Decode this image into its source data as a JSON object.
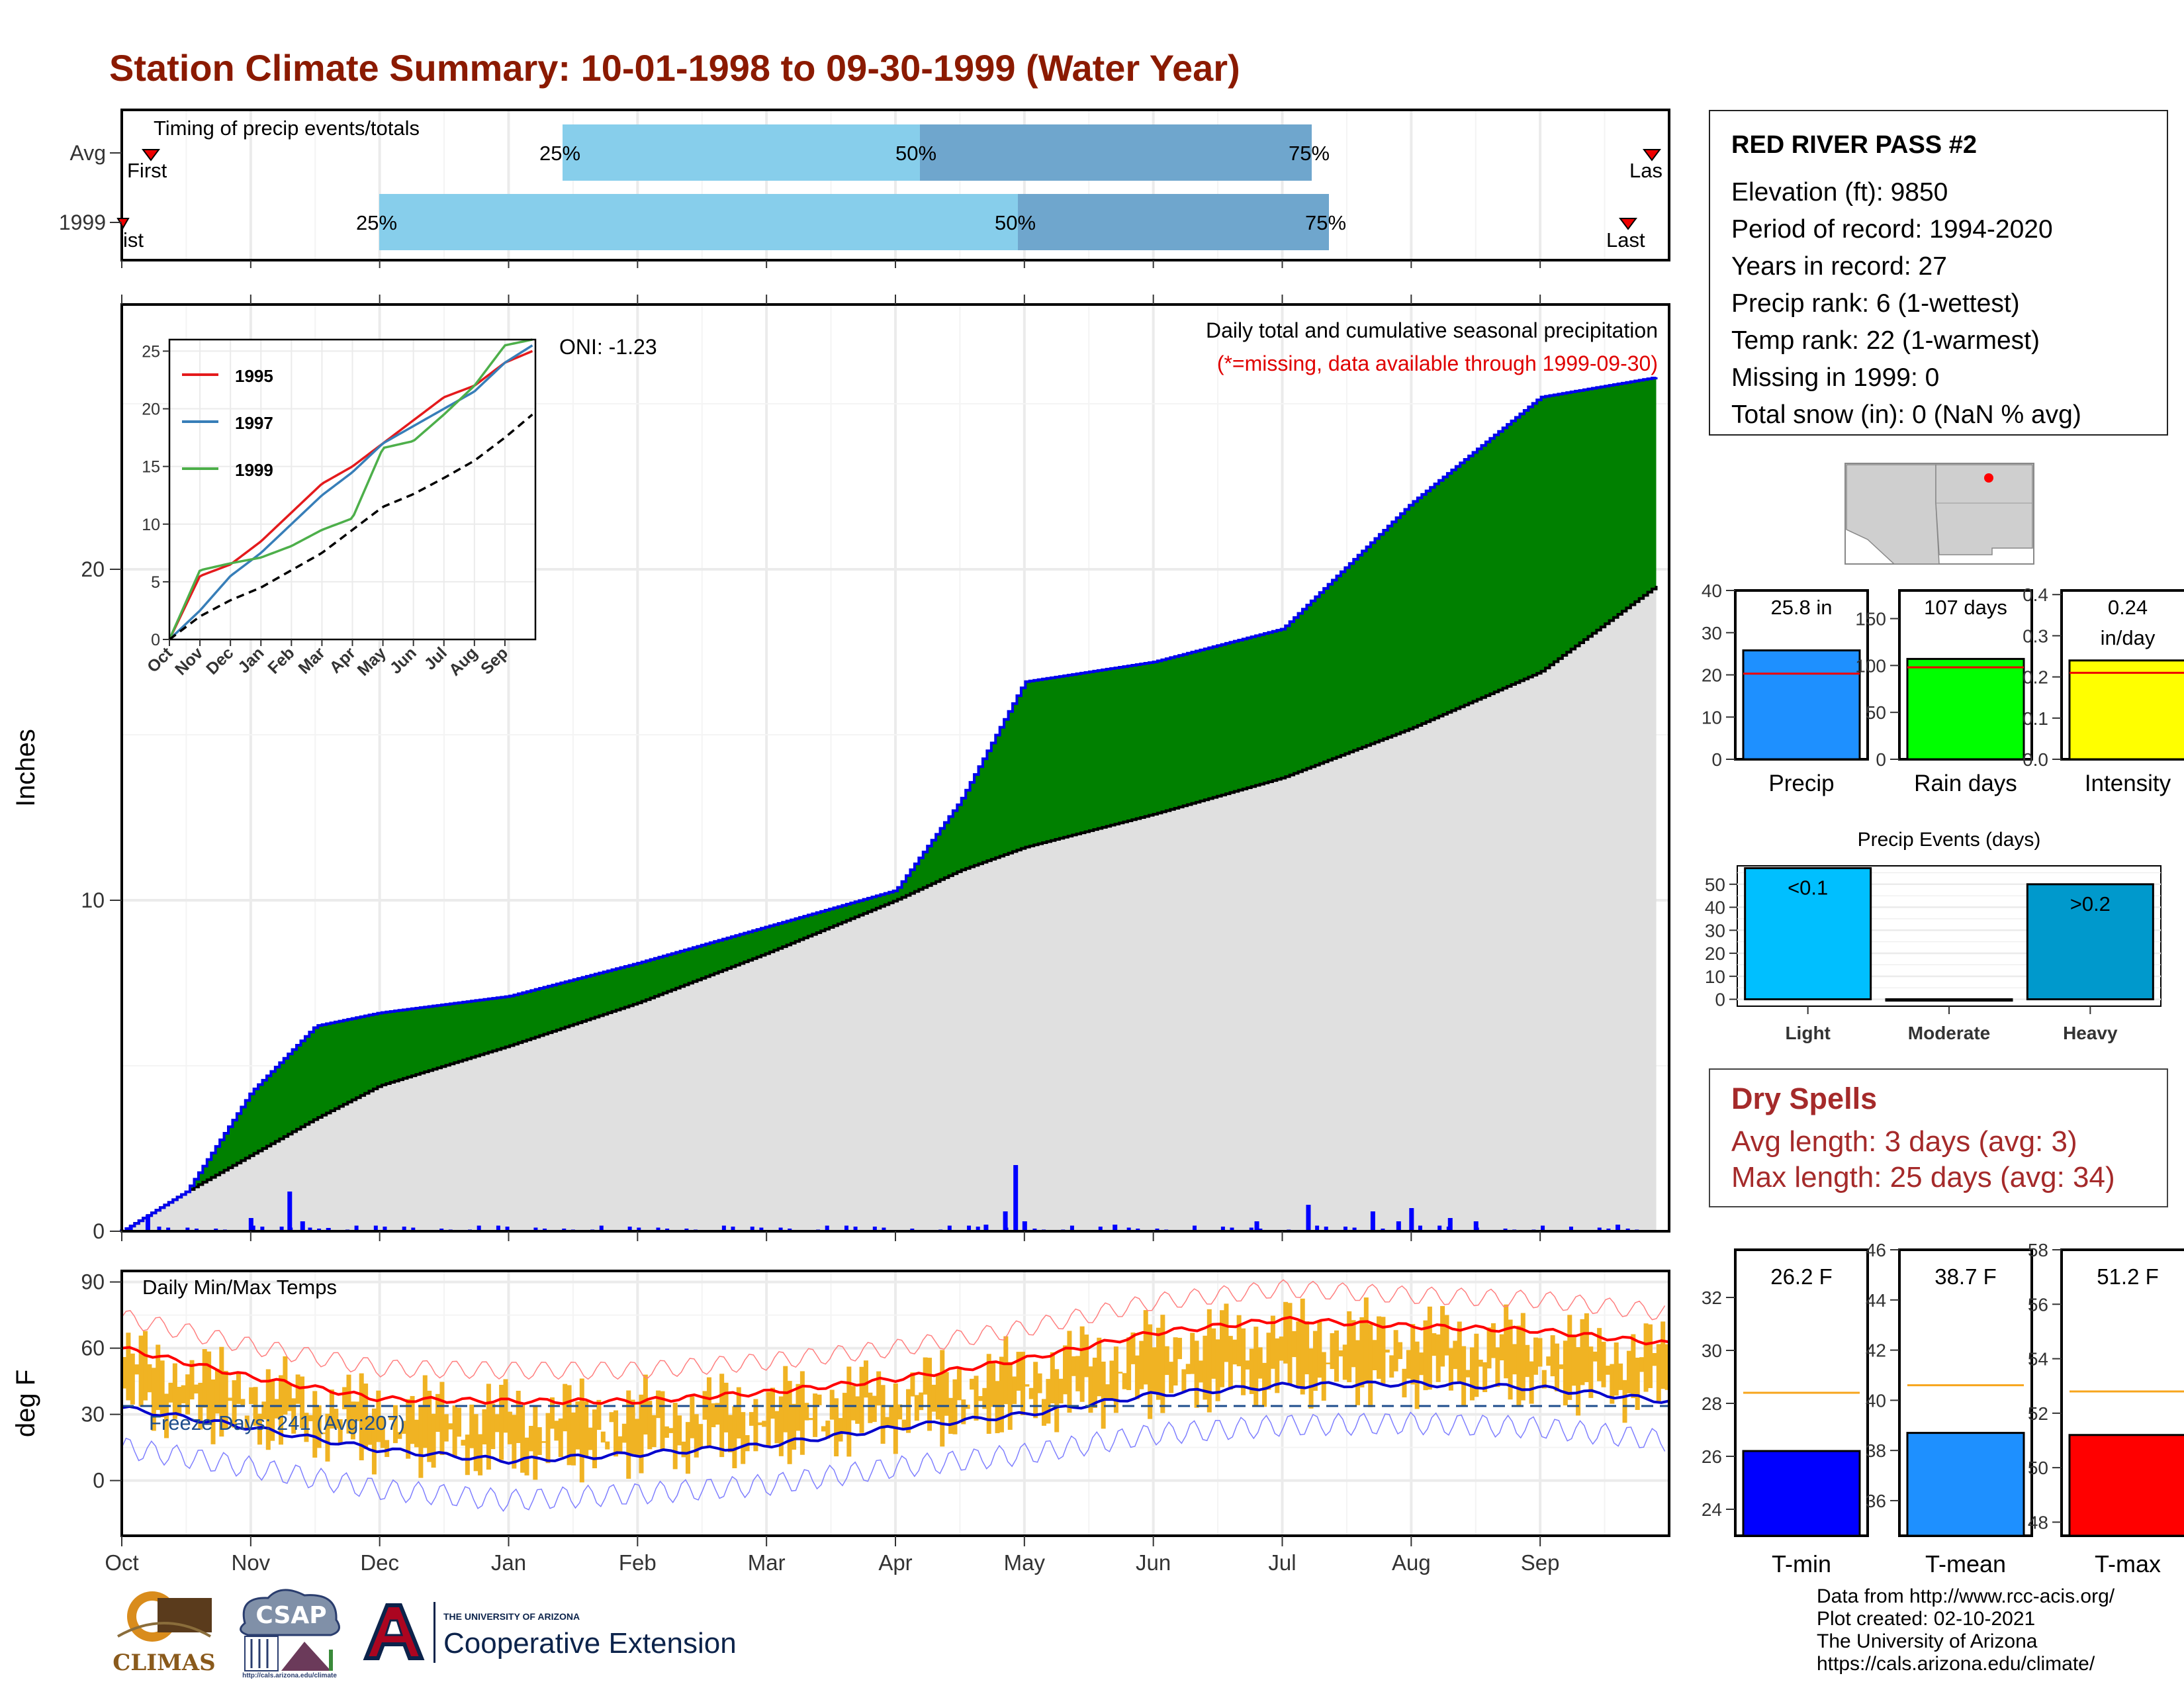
{
  "title": "Station Climate Summary: 10-01-1998 to 09-30-1999 (Water Year)",
  "timing": {
    "label": "Timing of precip events/totals",
    "rows": [
      {
        "name": "Avg",
        "first": "First",
        "last": "Las",
        "p25": "25%",
        "p50": "50%",
        "p75": "75%"
      },
      {
        "name": "1999",
        "first": "ist",
        "last": "Last",
        "p25": "25%",
        "p50": "50%",
        "p75": "75%"
      }
    ]
  },
  "main_chart": {
    "ylabel": "Inches",
    "yticks": [
      "0",
      "10",
      "20"
    ],
    "oni": "ONI: -1.23",
    "note1": "Daily total and cumulative seasonal precipitation",
    "note2": "(*=missing, data available through 1999-09-30)"
  },
  "inset": {
    "yticks": [
      "0",
      "5",
      "10",
      "15",
      "20",
      "25"
    ],
    "xticks": [
      "Oct",
      "Nov",
      "Dec",
      "Jan",
      "Feb",
      "Mar",
      "Apr",
      "May",
      "Jun",
      "Jul",
      "Aug",
      "Sep"
    ],
    "legend": [
      "1995",
      "1997",
      "1999"
    ]
  },
  "temp_chart": {
    "ylabel": "deg F",
    "yticks": [
      "0",
      "30",
      "60",
      "90"
    ],
    "label": "Daily Min/Max Temps",
    "freeze": "Freeze Days: 241 (Avg:207)"
  },
  "months": [
    "Oct",
    "Nov",
    "Dec",
    "Jan",
    "Feb",
    "Mar",
    "Apr",
    "May",
    "Jun",
    "Jul",
    "Aug",
    "Sep"
  ],
  "station": {
    "name": "RED RIVER PASS #2",
    "lines": [
      "Elevation (ft): 9850",
      "Period of record: 1994-2020",
      "Years in record: 27",
      "Precip rank: 6 (1-wettest)",
      "Temp rank: 22 (1-warmest)",
      "Missing in 1999: 0",
      "Total snow (in): 0 (NaN % avg)"
    ]
  },
  "mini_precip": {
    "label": "Precip",
    "value_text": "25.8 in",
    "yticks": [
      "0",
      "10",
      "20",
      "30",
      "40"
    ]
  },
  "mini_raindays": {
    "label": "Rain days",
    "value_text": "107 days",
    "yticks": [
      "0",
      "50",
      "100",
      "150"
    ]
  },
  "mini_intensity": {
    "label": "Intensity",
    "value_text": "0.24",
    "value_unit": "in/day",
    "yticks": [
      "0.0",
      "0.1",
      "0.2",
      "0.3",
      "0.4"
    ]
  },
  "events": {
    "title": "Precip Events (days)",
    "yticks": [
      "0",
      "10",
      "20",
      "30",
      "40",
      "50"
    ],
    "categories": [
      "Light",
      "Moderate",
      "Heavy"
    ],
    "labels": [
      "<0.1",
      "",
      ">0.2"
    ]
  },
  "dry_spells": {
    "title": "Dry Spells",
    "avg": "Avg length: 3 days (avg: 3)",
    "max": "Max length: 25 days (avg: 34)"
  },
  "tmin": {
    "label": "T-min",
    "value_text": "26.2 F",
    "yticks": [
      "24",
      "26",
      "28",
      "30",
      "32"
    ]
  },
  "tmean": {
    "label": "T-mean",
    "value_text": "38.7 F",
    "yticks": [
      "36",
      "38",
      "40",
      "42",
      "44",
      "46"
    ]
  },
  "tmax": {
    "label": "T-max",
    "value_text": "51.2 F",
    "yticks": [
      "48",
      "50",
      "52",
      "54",
      "56",
      "58"
    ]
  },
  "credits": [
    "Data from http://www.rcc-acis.org/",
    "Plot created: 02-10-2021",
    "The University of Arizona",
    "https://cals.arizona.edu/climate/"
  ],
  "logos": {
    "climas": "CLIMAS",
    "csap": "CSAP",
    "csap_url": "http://cals.arizona.edu/climate",
    "ua_small": "THE UNIVERSITY OF ARIZONA",
    "ua_big": "Cooperative Extension"
  },
  "colors": {
    "title": "#8b1a00",
    "green": "#008000",
    "blue_line": "#0000ee",
    "gray_area": "#e0e0e0",
    "light_blue": "#87ceeb",
    "steel_blue": "#6fa6cd",
    "orange": "#f0b323",
    "tmax_line": "#ff0000",
    "tmin_line": "#0000cc",
    "red": "#ff0000"
  },
  "chart_data": [
    {
      "type": "area",
      "name": "cumulative",
      "x_months": [
        0,
        0.5,
        1,
        1.5,
        2,
        3,
        4,
        5,
        6,
        6.5,
        7,
        8,
        9,
        10,
        11,
        11.9
      ],
      "cum_1999": [
        0,
        1.2,
        4.2,
        6.2,
        6.6,
        7.1,
        8.1,
        9.2,
        10.3,
        13.0,
        16.6,
        17.2,
        18.2,
        22.0,
        25.2,
        25.8
      ],
      "cum_avg": [
        0,
        1.2,
        2.3,
        3.4,
        4.4,
        5.6,
        6.9,
        8.4,
        10.0,
        10.9,
        11.6,
        12.6,
        13.7,
        15.2,
        16.9,
        19.5
      ],
      "ylim": [
        0,
        28
      ],
      "daily_spikes": [
        [
          0.2,
          0.5
        ],
        [
          1.0,
          0.4
        ],
        [
          1.3,
          1.2
        ],
        [
          1.4,
          0.3
        ],
        [
          1.6,
          0.1
        ],
        [
          6.7,
          0.2
        ],
        [
          6.85,
          0.6
        ],
        [
          6.93,
          2.0
        ],
        [
          7.0,
          0.3
        ],
        [
          7.7,
          0.2
        ],
        [
          8.8,
          0.3
        ],
        [
          9.2,
          0.8
        ],
        [
          9.7,
          0.6
        ],
        [
          9.9,
          0.3
        ],
        [
          10.0,
          0.7
        ],
        [
          10.3,
          0.4
        ],
        [
          10.5,
          0.3
        ],
        [
          11.6,
          0.2
        ]
      ]
    },
    {
      "type": "line",
      "name": "inset-cumulative",
      "x_months": [
        0,
        1,
        2,
        3,
        4,
        5,
        6,
        7,
        8,
        9,
        10,
        11,
        11.9
      ],
      "series": [
        {
          "name": "1995",
          "values": [
            0,
            5.5,
            6.5,
            8.5,
            11,
            13.5,
            15,
            17,
            19,
            21,
            22,
            24,
            25
          ]
        },
        {
          "name": "1997",
          "values": [
            0,
            2.5,
            5.5,
            7.5,
            10,
            12.5,
            14.5,
            17,
            18.5,
            20,
            21.5,
            24,
            25.5
          ]
        },
        {
          "name": "1999",
          "values": [
            0,
            6,
            6.6,
            7.1,
            8.1,
            9.5,
            10.5,
            16.6,
            17.2,
            19.5,
            22,
            25.5,
            26
          ]
        },
        {
          "name": "avg",
          "values": [
            0,
            2,
            3.4,
            4.5,
            6,
            7.5,
            9.5,
            11.5,
            12.6,
            14,
            15.5,
            17.5,
            19.5
          ]
        }
      ],
      "ylim": [
        0,
        26
      ]
    },
    {
      "type": "line",
      "name": "temperatures",
      "x_months": [
        0,
        1,
        2,
        3,
        4,
        5,
        6,
        7,
        8,
        9,
        10,
        11,
        12
      ],
      "tmax_avg": [
        60,
        47,
        37,
        36,
        36,
        40,
        46,
        55,
        67,
        73,
        70,
        68,
        62
      ],
      "tmin_avg": [
        33,
        24,
        14,
        9,
        12,
        16,
        24,
        30,
        39,
        43,
        44,
        42,
        36
      ],
      "ylim": [
        -25,
        95
      ]
    },
    {
      "type": "bar",
      "name": "precip-total",
      "values": [
        25.8
      ],
      "avg": [
        20.3
      ],
      "ylim": [
        0,
        40
      ]
    },
    {
      "type": "bar",
      "name": "rain-days",
      "values": [
        107
      ],
      "avg": [
        98
      ],
      "ylim": [
        0,
        180
      ]
    },
    {
      "type": "bar",
      "name": "intensity",
      "values": [
        0.24
      ],
      "avg": [
        0.21
      ],
      "ylim": [
        0,
        0.41
      ]
    },
    {
      "type": "bar",
      "name": "precip-events",
      "categories": [
        "Light",
        "Moderate",
        "Heavy"
      ],
      "values": [
        57,
        0,
        50
      ],
      "ylim": [
        -3,
        58
      ]
    },
    {
      "type": "bar",
      "name": "tmin",
      "values": [
        26.2
      ],
      "avg": [
        28.4
      ],
      "ylim": [
        23,
        33.8
      ]
    },
    {
      "type": "bar",
      "name": "tmean",
      "values": [
        38.7
      ],
      "avg": [
        40.6
      ],
      "ylim": [
        34.6,
        46
      ]
    },
    {
      "type": "bar",
      "name": "tmax",
      "values": [
        51.2
      ],
      "avg": [
        52.8
      ],
      "ylim": [
        47.5,
        58
      ]
    }
  ]
}
